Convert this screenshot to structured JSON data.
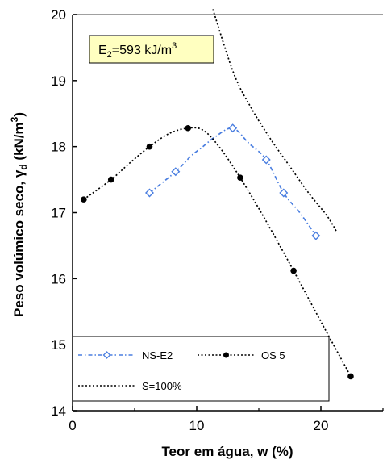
{
  "chart_data": {
    "type": "scatter",
    "title": "",
    "xlabel": "Teor em água, w (%)",
    "ylabel_main": "Peso volúmico seco,  γ",
    "ylabel_sub": "d",
    "ylabel_unit": " (kN/m",
    "ylabel_sup": "3",
    "ylabel_close": ")",
    "xlim": [
      0,
      25
    ],
    "ylim": [
      14,
      20
    ],
    "xticks": [
      0,
      10,
      20
    ],
    "yticks": [
      14,
      15,
      16,
      17,
      18,
      19,
      20
    ],
    "grid": false,
    "legend_position": "bottom-left",
    "annotation": {
      "prefix": "E",
      "sub": "2",
      "mid": "=593 kJ/m",
      "sup": "3",
      "fill": "#ffffc0"
    },
    "series": [
      {
        "name": "NS-E2",
        "color": "#4a7ee0",
        "marker": "diamond",
        "line": "dash-dot",
        "points": [
          [
            6.2,
            17.3
          ],
          [
            8.3,
            17.62
          ],
          [
            12.9,
            18.28
          ],
          [
            15.6,
            17.8
          ],
          [
            17.0,
            17.3
          ],
          [
            19.6,
            16.65
          ]
        ],
        "curve": [
          [
            6.2,
            17.3
          ],
          [
            8.3,
            17.62
          ],
          [
            9.5,
            17.85
          ],
          [
            10.5,
            18.0
          ],
          [
            11.5,
            18.15
          ],
          [
            12.9,
            18.28
          ],
          [
            14.2,
            18.05
          ],
          [
            15.6,
            17.8
          ],
          [
            17.0,
            17.3
          ],
          [
            18.3,
            17.0
          ],
          [
            19.6,
            16.65
          ]
        ]
      },
      {
        "name": "OS 5",
        "color": "#000000",
        "marker": "circle",
        "line": "dotted",
        "points": [
          [
            0.9,
            17.2
          ],
          [
            3.1,
            17.5
          ],
          [
            6.2,
            18.0
          ],
          [
            9.3,
            18.28
          ],
          [
            13.5,
            17.53
          ],
          [
            17.8,
            16.12
          ],
          [
            22.4,
            14.52
          ]
        ],
        "curve": [
          [
            0.9,
            17.2
          ],
          [
            3.1,
            17.5
          ],
          [
            4.6,
            17.75
          ],
          [
            6.2,
            18.0
          ],
          [
            7.8,
            18.2
          ],
          [
            9.3,
            18.28
          ],
          [
            10.5,
            18.25
          ],
          [
            11.8,
            18.0
          ],
          [
            13.5,
            17.53
          ],
          [
            15.5,
            16.9
          ],
          [
            17.8,
            16.12
          ],
          [
            20.0,
            15.35
          ],
          [
            22.4,
            14.52
          ]
        ]
      },
      {
        "name": "S=100%",
        "color": "#000000",
        "marker": "none",
        "line": "dotted",
        "points": [],
        "curve": [
          [
            11.3,
            20.08
          ],
          [
            13.0,
            19.1
          ],
          [
            14.5,
            18.55
          ],
          [
            16.0,
            18.1
          ],
          [
            17.5,
            17.7
          ],
          [
            19.0,
            17.3
          ],
          [
            20.5,
            16.95
          ],
          [
            21.3,
            16.7
          ]
        ]
      }
    ]
  }
}
